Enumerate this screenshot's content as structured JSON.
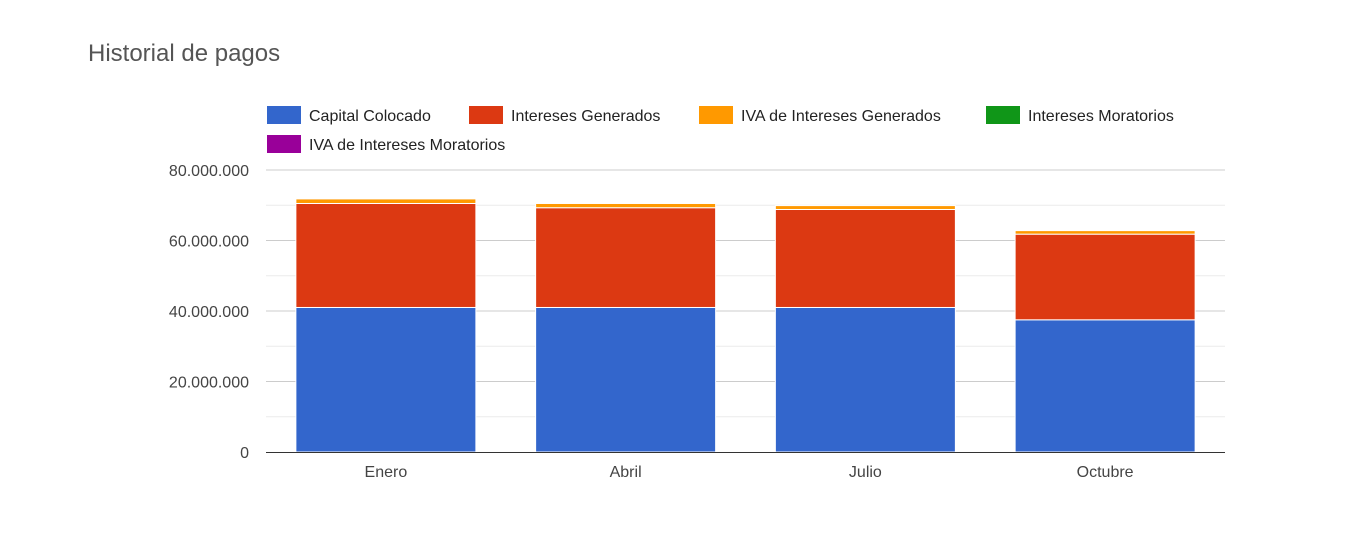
{
  "chart_data": {
    "type": "bar",
    "stacked": true,
    "title": "Historial de pagos",
    "xlabel": "",
    "ylabel": "",
    "categories": [
      "Enero",
      "Abril",
      "Julio",
      "Octubre"
    ],
    "ylim": [
      0,
      80000000
    ],
    "yticks": [
      0,
      20000000,
      40000000,
      60000000,
      80000000
    ],
    "ytick_labels": [
      "0",
      "20.000.000",
      "40.000.000",
      "60.000.000",
      "80.000.000"
    ],
    "grid": true,
    "legend_position": "top",
    "series": [
      {
        "name": "Capital Colocado",
        "color": "#3366cc",
        "values": [
          41000000,
          41000000,
          41000000,
          37500000
        ]
      },
      {
        "name": "Intereses Generados",
        "color": "#dc3912",
        "values": [
          29500000,
          28300000,
          27800000,
          24300000
        ]
      },
      {
        "name": "IVA de Intereses Generados",
        "color": "#ff9900",
        "values": [
          1300000,
          1200000,
          1100000,
          1000000
        ]
      },
      {
        "name": "Intereses Moratorios",
        "color": "#109618",
        "values": [
          0,
          0,
          0,
          0
        ]
      },
      {
        "name": "IVA de Intereses Moratorios",
        "color": "#990099",
        "values": [
          0,
          0,
          0,
          0
        ]
      }
    ]
  }
}
